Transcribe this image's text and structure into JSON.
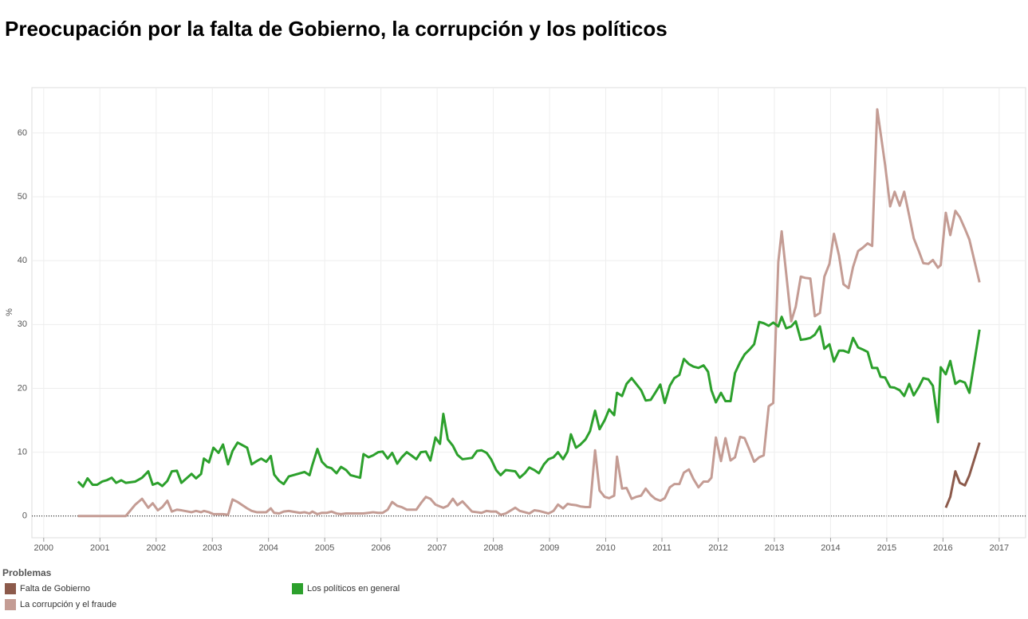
{
  "chart_data": {
    "type": "line",
    "title": "Preocupación por la falta de Gobierno, la corrupción y los políticos",
    "y_label": "%",
    "legend_title": "Problemas",
    "legend": "bottom",
    "grid": true,
    "zero_line": true,
    "xlim": [
      1999.79,
      2017.47
    ],
    "ylim": [
      -3.4,
      67.1
    ],
    "xticks": [
      2000,
      2001,
      2002,
      2003,
      2004,
      2005,
      2006,
      2007,
      2008,
      2009,
      2010,
      2011,
      2012,
      2013,
      2014,
      2015,
      2016,
      2017
    ],
    "yticks": [
      0,
      10,
      20,
      30,
      40,
      50,
      60
    ],
    "x": [
      2000.61,
      2000.7,
      2000.78,
      2000.87,
      2000.95,
      2001.04,
      2001.12,
      2001.21,
      2001.29,
      2001.38,
      2001.46,
      2001.63,
      2001.75,
      2001.86,
      2001.94,
      2002.03,
      2002.11,
      2002.2,
      2002.28,
      2002.37,
      2002.45,
      2002.63,
      2002.71,
      2002.8,
      2002.85,
      2002.94,
      2003.02,
      2003.11,
      2003.19,
      2003.28,
      2003.36,
      2003.45,
      2003.62,
      2003.7,
      2003.79,
      2003.87,
      2003.96,
      2004.04,
      2004.1,
      2004.19,
      2004.27,
      2004.36,
      2004.56,
      2004.64,
      2004.73,
      2004.78,
      2004.87,
      2004.95,
      2005.04,
      2005.12,
      2005.21,
      2005.29,
      2005.38,
      2005.46,
      2005.63,
      2005.69,
      2005.78,
      2005.86,
      2005.95,
      2006.03,
      2006.12,
      2006.2,
      2006.29,
      2006.37,
      2006.46,
      2006.54,
      2006.63,
      2006.71,
      2006.8,
      2006.88,
      2006.97,
      2007.05,
      2007.11,
      2007.19,
      2007.28,
      2007.36,
      2007.45,
      2007.62,
      2007.71,
      2007.79,
      2007.88,
      2007.96,
      2008.05,
      2008.13,
      2008.22,
      2008.39,
      2008.47,
      2008.56,
      2008.64,
      2008.73,
      2008.81,
      2008.9,
      2008.98,
      2009.07,
      2009.15,
      2009.24,
      2009.32,
      2009.38,
      2009.47,
      2009.55,
      2009.64,
      2009.72,
      2009.81,
      2009.89,
      2009.98,
      2010.06,
      2010.15,
      2010.2,
      2010.29,
      2010.37,
      2010.46,
      2010.54,
      2010.63,
      2010.71,
      2010.8,
      2010.88,
      2010.97,
      2011.05,
      2011.14,
      2011.22,
      2011.31,
      2011.39,
      2011.48,
      2011.56,
      2011.65,
      2011.74,
      2011.82,
      2011.88,
      2011.96,
      2012.05,
      2012.13,
      2012.22,
      2012.3,
      2012.39,
      2012.47,
      2012.56,
      2012.64,
      2012.73,
      2012.81,
      2012.9,
      2012.98,
      2013.07,
      2013.13,
      2013.21,
      2013.3,
      2013.38,
      2013.47,
      2013.55,
      2013.64,
      2013.72,
      2013.81,
      2013.89,
      2013.98,
      2014.06,
      2014.15,
      2014.23,
      2014.32,
      2014.4,
      2014.49,
      2014.57,
      2014.66,
      2014.74,
      2014.83,
      2014.89,
      2014.97,
      2015.06,
      2015.14,
      2015.23,
      2015.31,
      2015.4,
      2015.48,
      2015.57,
      2015.65,
      2015.74,
      2015.82,
      2015.91,
      2015.96,
      2016.05,
      2016.13,
      2016.22,
      2016.3,
      2016.39,
      2016.47,
      2016.65
    ],
    "series": [
      {
        "name": "Falta de Gobierno",
        "color": "#8c5a4b",
        "values": [
          null,
          null,
          null,
          null,
          null,
          null,
          null,
          null,
          null,
          null,
          null,
          null,
          null,
          null,
          null,
          null,
          null,
          null,
          null,
          null,
          null,
          null,
          null,
          null,
          null,
          null,
          null,
          null,
          null,
          null,
          null,
          null,
          null,
          null,
          null,
          null,
          null,
          null,
          null,
          null,
          null,
          null,
          null,
          null,
          null,
          null,
          null,
          null,
          null,
          null,
          null,
          null,
          null,
          null,
          null,
          null,
          null,
          null,
          null,
          null,
          null,
          null,
          null,
          null,
          null,
          null,
          null,
          null,
          null,
          null,
          null,
          null,
          null,
          null,
          null,
          null,
          null,
          null,
          null,
          null,
          null,
          null,
          null,
          null,
          null,
          null,
          null,
          null,
          null,
          null,
          null,
          null,
          null,
          null,
          null,
          null,
          null,
          null,
          null,
          null,
          null,
          null,
          null,
          null,
          null,
          null,
          null,
          null,
          null,
          null,
          null,
          null,
          null,
          null,
          null,
          null,
          null,
          null,
          null,
          null,
          null,
          null,
          null,
          null,
          null,
          null,
          null,
          null,
          null,
          null,
          null,
          null,
          null,
          null,
          null,
          null,
          null,
          null,
          null,
          null,
          null,
          null,
          null,
          null,
          null,
          null,
          null,
          null,
          null,
          null,
          null,
          null,
          null,
          null,
          null,
          null,
          null,
          null,
          null,
          null,
          null,
          null,
          null,
          null,
          null,
          null,
          null,
          null,
          null,
          null,
          null,
          null,
          null,
          null,
          null,
          null,
          null,
          1.3,
          3.0,
          7.0,
          5.2,
          4.8,
          6.4,
          11.5
        ]
      },
      {
        "name": "La corrupción y el fraude",
        "color": "#c49c94",
        "values": [
          0,
          0,
          0,
          0,
          0,
          0,
          0,
          0,
          0,
          0,
          0,
          1.8,
          2.7,
          1.3,
          2.0,
          0.9,
          1.4,
          2.4,
          0.7,
          1.0,
          0.9,
          0.6,
          0.8,
          0.6,
          0.8,
          0.6,
          0.3,
          0.3,
          0.3,
          0.2,
          2.6,
          2.2,
          1.2,
          0.8,
          0.6,
          0.6,
          0.6,
          1.2,
          0.5,
          0.4,
          0.7,
          0.8,
          0.5,
          0.6,
          0.4,
          0.7,
          0.3,
          0.5,
          0.5,
          0.7,
          0.4,
          0.3,
          0.4,
          0.4,
          0.4,
          0.4,
          0.5,
          0.6,
          0.5,
          0.5,
          1.0,
          2.2,
          1.6,
          1.4,
          1.0,
          1.0,
          1.0,
          2.0,
          3.0,
          2.7,
          1.8,
          1.5,
          1.3,
          1.6,
          2.7,
          1.7,
          2.3,
          0.7,
          0.6,
          0.5,
          0.8,
          0.7,
          0.7,
          0.2,
          0.4,
          1.3,
          0.8,
          0.6,
          0.4,
          0.9,
          0.8,
          0.6,
          0.4,
          0.8,
          1.8,
          1.2,
          1.9,
          1.8,
          1.7,
          1.5,
          1.4,
          1.4,
          10.3,
          4.0,
          3.0,
          2.8,
          3.2,
          9.3,
          4.3,
          4.4,
          2.7,
          3.0,
          3.2,
          4.3,
          3.3,
          2.7,
          2.4,
          2.8,
          4.5,
          5.0,
          5.0,
          6.8,
          7.3,
          5.8,
          4.5,
          5.4,
          5.4,
          6.0,
          12.3,
          8.6,
          12.2,
          8.7,
          9.2,
          12.4,
          12.2,
          10.3,
          8.5,
          9.2,
          9.5,
          17.2,
          17.7,
          39.8,
          44.6,
          38.0,
          30.5,
          32.8,
          37.5,
          37.3,
          37.2,
          31.3,
          31.8,
          37.5,
          39.5,
          44.2,
          40.8,
          36.3,
          35.7,
          39.0,
          41.5,
          42.0,
          42.7,
          42.3,
          63.7,
          60.0,
          55.0,
          48.5,
          50.8,
          48.6,
          50.8,
          47.0,
          43.5,
          41.5,
          39.6,
          39.5,
          40.1,
          38.9,
          39.3,
          47.5,
          44.0,
          47.8,
          46.8,
          45.0,
          43.3,
          36.6
        ]
      },
      {
        "name": "Los políticos en general",
        "color": "#2ca02c",
        "values": [
          5.4,
          4.6,
          5.9,
          4.9,
          4.9,
          5.4,
          5.6,
          6.0,
          5.2,
          5.6,
          5.2,
          5.4,
          6.0,
          7.0,
          4.9,
          5.2,
          4.7,
          5.5,
          7.0,
          7.1,
          5.2,
          6.6,
          5.9,
          6.6,
          9.0,
          8.4,
          10.7,
          9.9,
          11.2,
          8.1,
          10.2,
          11.5,
          10.7,
          8.1,
          8.6,
          9.0,
          8.5,
          9.4,
          6.5,
          5.5,
          5.0,
          6.2,
          6.7,
          6.9,
          6.4,
          8.0,
          10.5,
          8.5,
          7.7,
          7.5,
          6.7,
          7.7,
          7.2,
          6.4,
          6.0,
          9.7,
          9.2,
          9.5,
          10.0,
          10.1,
          9.0,
          9.9,
          8.2,
          9.2,
          10.0,
          9.5,
          8.9,
          10.0,
          10.1,
          8.7,
          12.3,
          11.3,
          16.0,
          12.0,
          11.0,
          9.6,
          8.9,
          9.1,
          10.2,
          10.3,
          9.9,
          8.9,
          7.2,
          6.4,
          7.2,
          7.0,
          6.0,
          6.7,
          7.6,
          7.2,
          6.7,
          8.1,
          8.9,
          9.2,
          10.0,
          8.9,
          10.1,
          12.8,
          10.7,
          11.2,
          12.0,
          13.3,
          16.5,
          13.6,
          15.0,
          16.7,
          15.8,
          19.3,
          18.8,
          20.7,
          21.6,
          20.7,
          19.7,
          18.1,
          18.2,
          19.3,
          20.6,
          17.7,
          20.4,
          21.6,
          22.1,
          24.6,
          23.8,
          23.4,
          23.2,
          23.6,
          22.6,
          19.7,
          17.8,
          19.3,
          18.0,
          18.0,
          22.4,
          24.1,
          25.3,
          26.1,
          26.9,
          30.4,
          30.2,
          29.8,
          30.3,
          29.7,
          31.2,
          29.4,
          29.7,
          30.5,
          27.6,
          27.7,
          27.9,
          28.4,
          29.7,
          26.2,
          26.9,
          24.2,
          25.9,
          25.9,
          25.6,
          27.9,
          26.4,
          26.1,
          25.7,
          23.2,
          23.2,
          21.8,
          21.7,
          20.2,
          20.1,
          19.7,
          18.8,
          20.7,
          18.9,
          20.2,
          21.6,
          21.4,
          20.4,
          14.7,
          23.3,
          22.2,
          24.3,
          20.7,
          21.2,
          20.9,
          19.3,
          29.2
        ]
      }
    ]
  }
}
